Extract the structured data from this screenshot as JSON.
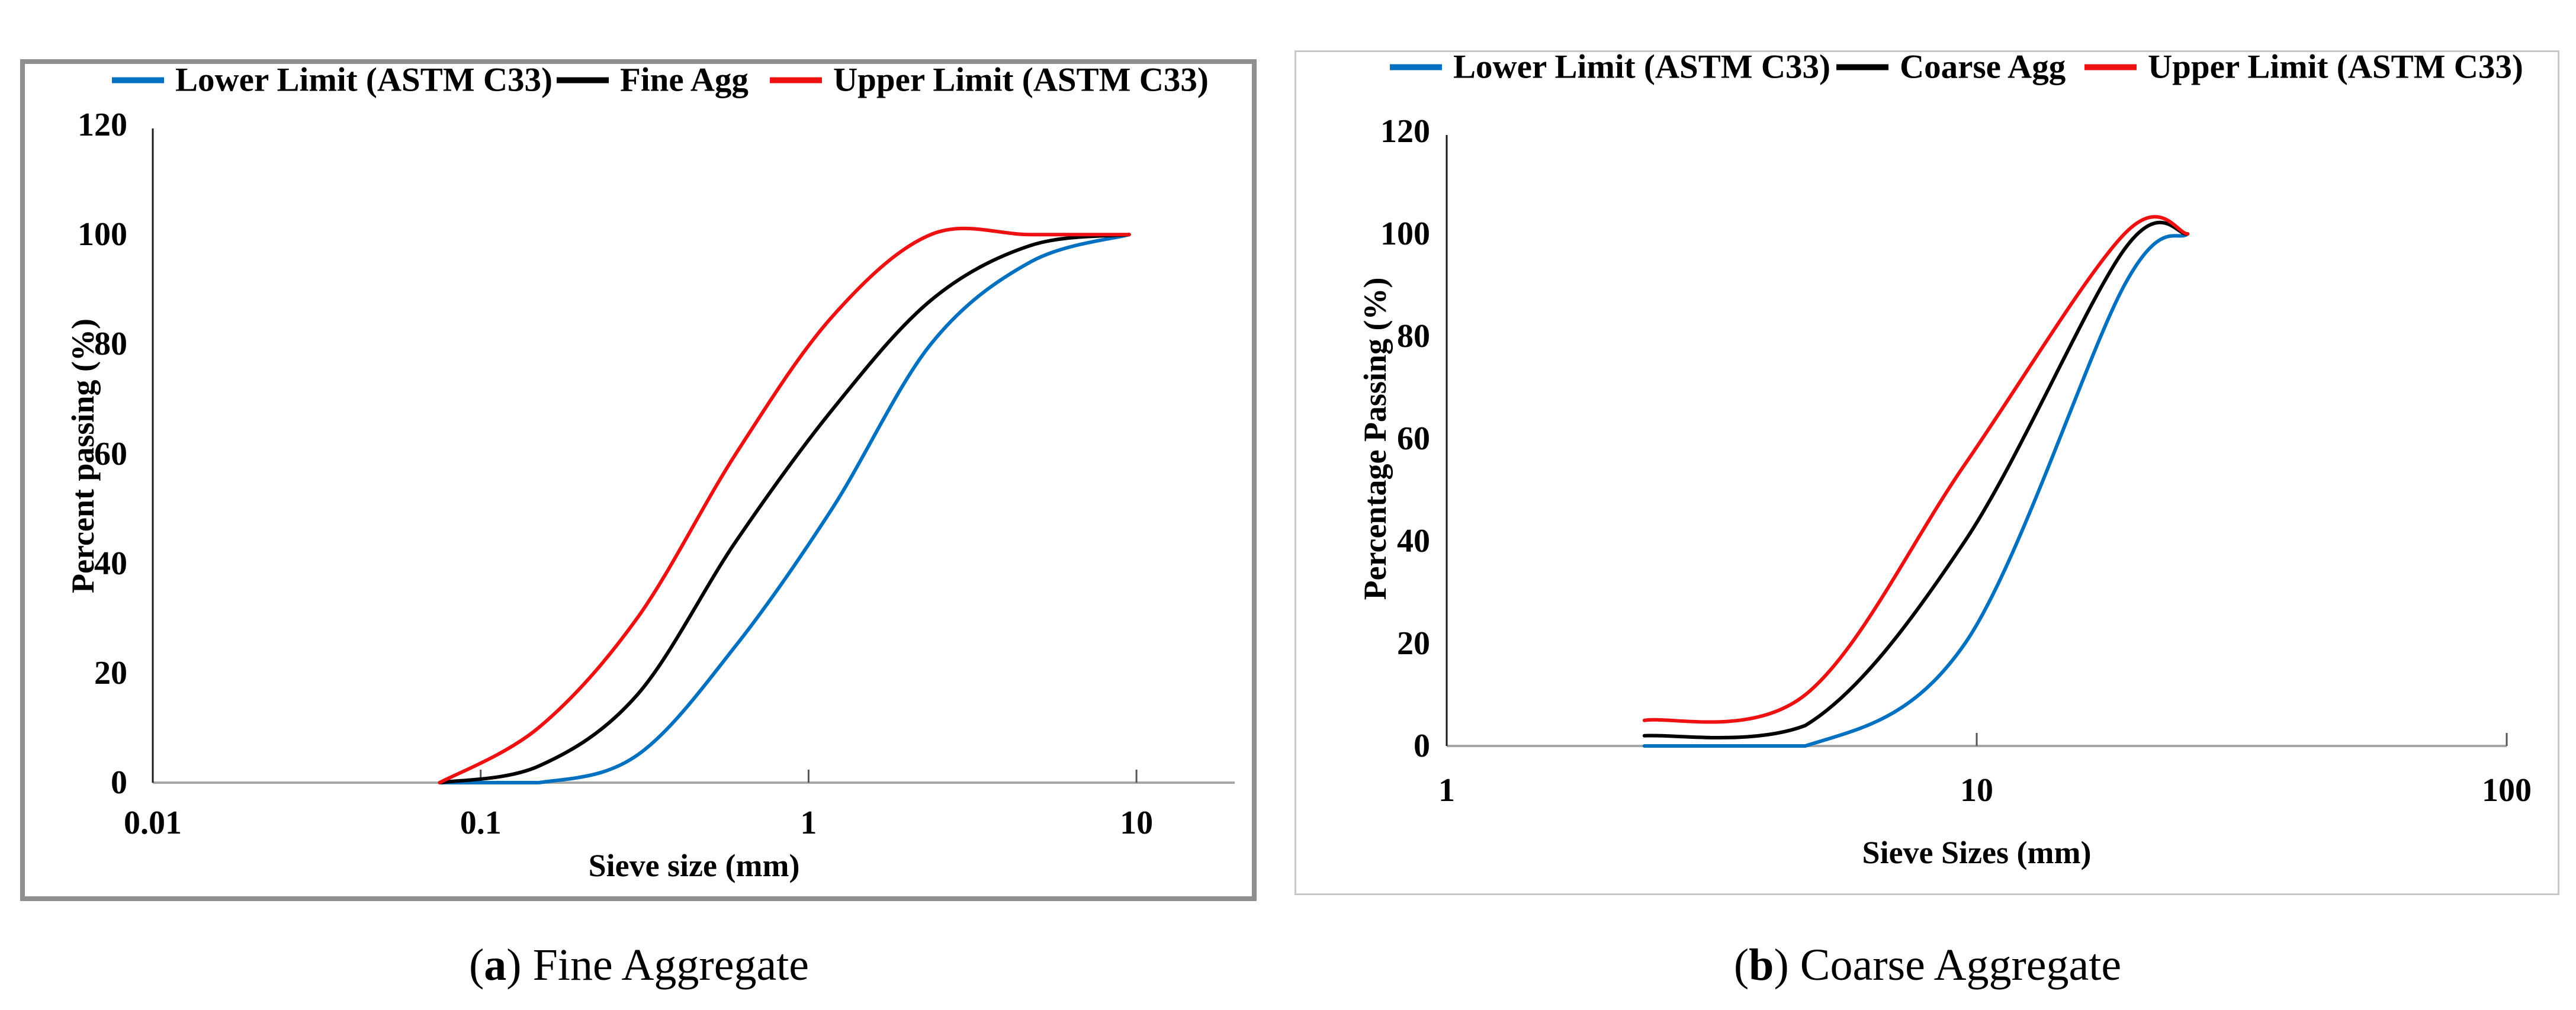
{
  "figure": {
    "captions": {
      "a": {
        "pre": "(",
        "letter": "a",
        "post": ") Fine Aggregate"
      },
      "b": {
        "pre": "(",
        "letter": "b",
        "post": ") Coarse Aggregate"
      }
    }
  },
  "chart_data": [
    {
      "type": "line",
      "title": "",
      "xlabel": "Sieve size (mm)",
      "ylabel": "Percent passing (%)",
      "x_scale": "log",
      "xlim": [
        0.01,
        20
      ],
      "x_ticks": [
        "0.01",
        "0.1",
        "1",
        "10"
      ],
      "ylim": [
        0,
        120
      ],
      "y_ticks": [
        0,
        20,
        40,
        60,
        80,
        100,
        120
      ],
      "grid": false,
      "legend_position": "top",
      "axis_color": "#A6A6A6",
      "series": [
        {
          "name": "Lower Limit (ASTM C33)",
          "color": "#0070C0",
          "x": [
            0.075,
            0.15,
            0.3,
            0.6,
            1.18,
            2.36,
            4.75,
            9.5
          ],
          "y": [
            0,
            0,
            5,
            25,
            50,
            80,
            95,
            100
          ]
        },
        {
          "name": "Fine Agg",
          "color": "#000000",
          "x": [
            0.075,
            0.15,
            0.3,
            0.6,
            1.18,
            2.36,
            4.75,
            9.5
          ],
          "y": [
            0,
            3,
            16,
            44,
            68,
            88,
            98,
            100
          ]
        },
        {
          "name": "Upper Limit (ASTM C33)",
          "color": "#EE1111",
          "x": [
            0.075,
            0.15,
            0.3,
            0.6,
            1.18,
            2.36,
            4.75,
            9.5
          ],
          "y": [
            0,
            10,
            30,
            60,
            85,
            100,
            100,
            100
          ]
        }
      ]
    },
    {
      "type": "line",
      "title": "",
      "xlabel": "Sieve Sizes (mm)",
      "ylabel": "Percentage Passing (%)",
      "x_scale": "log",
      "xlim": [
        1,
        100
      ],
      "x_ticks": [
        "1",
        "10",
        "100"
      ],
      "ylim": [
        0,
        120
      ],
      "y_ticks": [
        0,
        20,
        40,
        60,
        80,
        100,
        120
      ],
      "grid": false,
      "legend_position": "top",
      "axis_color": "#A6A6A6",
      "series": [
        {
          "name": "Lower Limit (ASTM C33)",
          "color": "#0070C0",
          "x": [
            2.36,
            4.75,
            9.5,
            19,
            25
          ],
          "y": [
            0,
            0,
            20,
            90,
            100
          ]
        },
        {
          "name": "Coarse Agg",
          "color": "#000000",
          "x": [
            2.36,
            4.75,
            9.5,
            19,
            25
          ],
          "y": [
            2,
            4,
            40,
            97,
            100
          ]
        },
        {
          "name": "Upper Limit (ASTM C33)",
          "color": "#EE1111",
          "x": [
            2.36,
            4.75,
            9.5,
            19,
            25
          ],
          "y": [
            5,
            10,
            55,
            100,
            100
          ]
        }
      ]
    }
  ]
}
